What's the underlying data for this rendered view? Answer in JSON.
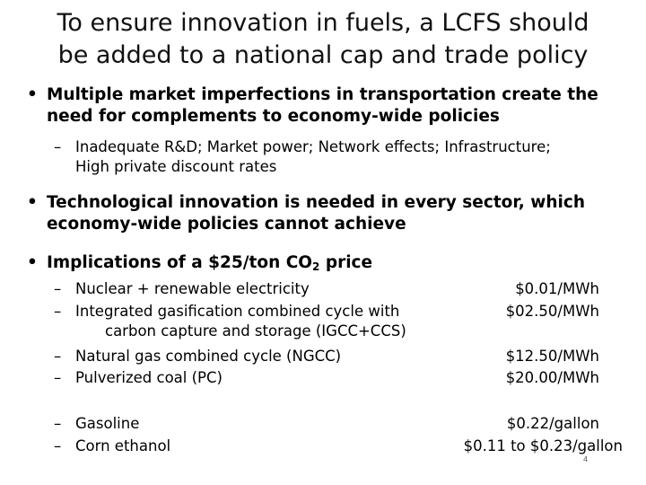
{
  "title": {
    "line1": "To ensure innovation in fuels, a LCFS should",
    "line2": "be added to a national cap and trade policy"
  },
  "bullet_symbol": "•",
  "dash_symbol": "–",
  "bullet1": {
    "line1": "Multiple market imperfections in transportation create the",
    "line2": "need for complements to economy-wide policies",
    "sub": {
      "line1": "Inadequate R&D; Market power; Network effects; Infrastructure;",
      "line2": "High private discount rates"
    }
  },
  "bullet2": {
    "line1": "Technological innovation is needed in every sector, which",
    "line2": "economy-wide policies cannot achieve"
  },
  "bullet3": {
    "prefix": "Implications of a $25/ton CO",
    "subscript": "2",
    "suffix": " price"
  },
  "implications": {
    "electricity": [
      {
        "label": "Nuclear + renewable electricity",
        "value": "$0.01/MWh"
      },
      {
        "label": "Integrated gasification combined cycle with",
        "label2": "carbon capture and storage (IGCC+CCS)",
        "value": "$02.50/MWh"
      },
      {
        "label": "Natural gas combined cycle (NGCC)",
        "value": "$12.50/MWh"
      },
      {
        "label": "Pulverized coal (PC)",
        "value": "$20.00/MWh"
      }
    ],
    "fuels": [
      {
        "label": "Gasoline",
        "value": "$0.22/gallon"
      },
      {
        "label": "Corn ethanol",
        "value": "$0.11 to $0.23/gallon"
      }
    ]
  },
  "page_number": "4"
}
